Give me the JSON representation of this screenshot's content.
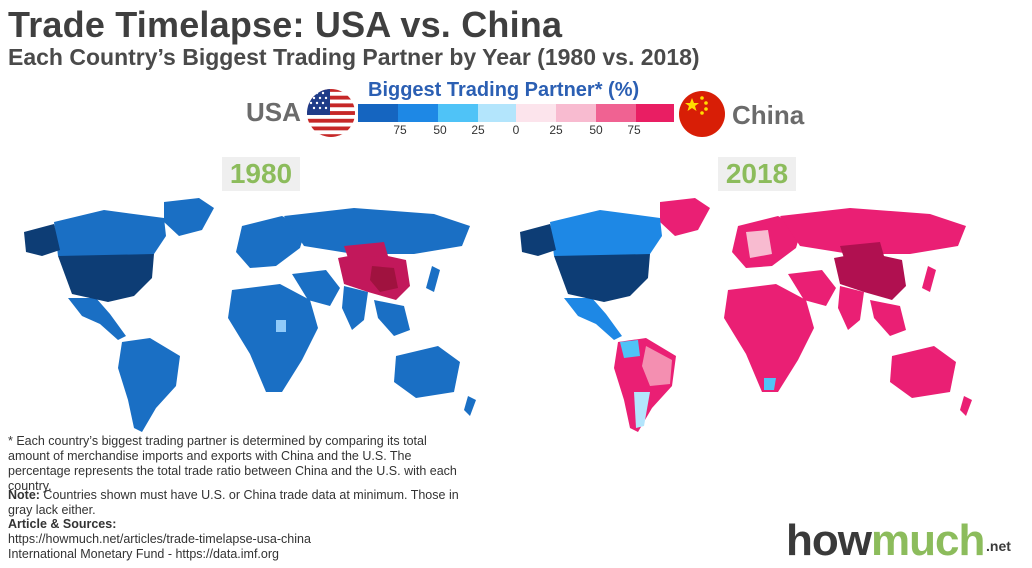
{
  "title": "Trade Timelapse: USA vs. China",
  "subtitle": "Each Country’s Biggest Trading Partner by Year (1980 vs. 2018)",
  "legend": {
    "title": "Biggest Trading Partner* (%)",
    "left_label": "USA",
    "right_label": "China",
    "ticks": [
      "75",
      "50",
      "25",
      "0",
      "25",
      "50",
      "75"
    ],
    "usa_colors": [
      "#1565c0",
      "#1e88e5",
      "#4fc3f7",
      "#b3e5fc"
    ],
    "china_colors": [
      "#fce4ec",
      "#f8bbd0",
      "#f06292",
      "#e91e63"
    ]
  },
  "maps": [
    {
      "year": "1980",
      "dominant": "USA",
      "dominant_color": "#1a6fc4",
      "usa_color": "#0d3d75",
      "china_color": "#c2185b",
      "china_core": "#a0123f"
    },
    {
      "year": "2018",
      "dominant": "China",
      "dominant_color": "#ea1f74",
      "usa_color": "#0d3d75",
      "china_color": "#b01050",
      "usa_partner": "#1e88e5"
    }
  ],
  "footnote": "* Each country’s biggest trading partner is determined by comparing its total amount of merchandise imports and exports with China and the U.S. The percentage represents the total trade ratio between China and the U.S. with each country.",
  "note_label": "Note:",
  "note_text": " Countries shown must have U.S. or China trade data at minimum. Those in gray lack either.",
  "sources_title": "Article & Sources:",
  "sources": [
    "https://howmuch.net/articles/trade-timelapse-usa-china",
    "International Monetary Fund - https://data.imf.org"
  ],
  "logo": {
    "how": "how",
    "much": "much",
    "net": ".net"
  }
}
